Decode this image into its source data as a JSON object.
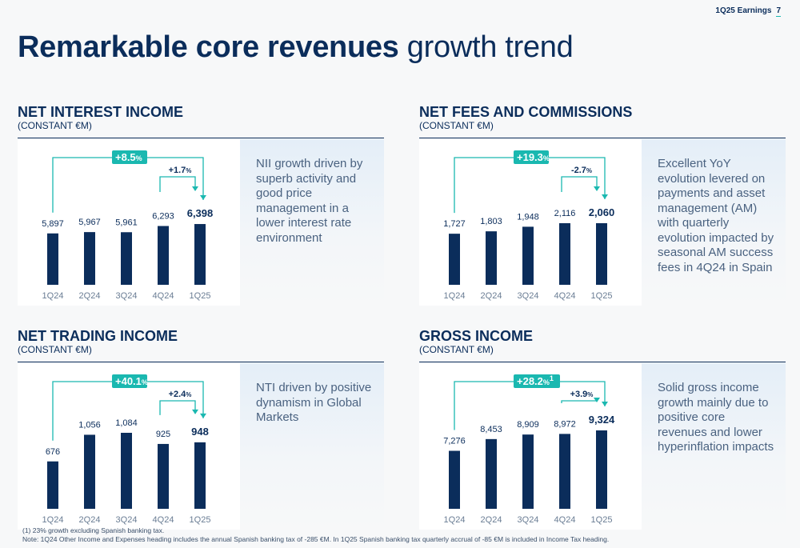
{
  "header": {
    "label": "1Q25 Earnings",
    "page": "7"
  },
  "title": {
    "bold": "Remarkable core revenues",
    "normal": "growth trend"
  },
  "footnotes": [
    "(1) 23% growth excluding Spanish banking tax.",
    "Note: 1Q24 Other Income and Expenses heading includes the annual Spanish banking tax of -285 €M. In 1Q25 Spanish banking tax quarterly accrual of -85 €M is included in Income Tax heading."
  ],
  "colors": {
    "bar": "#0b2d5b",
    "accent": "#1ab8b0",
    "text": "#0b2d5b"
  },
  "panels": [
    {
      "title": "NET INTEREST INCOME",
      "subtitle": "(CONSTANT €M)",
      "description": "NII growth driven by superb activity and good price management in a lower interest rate environment"
    },
    {
      "title": "NET FEES AND COMMISSIONS",
      "subtitle": "(CONSTANT €M)",
      "description": "Excellent YoY evolution levered on payments and asset management (AM) with quarterly evolution impacted by seasonal AM success fees in 4Q24 in Spain"
    },
    {
      "title": "NET TRADING INCOME",
      "subtitle": "(CONSTANT €M)",
      "description": "NTI driven by positive dynamism in Global Markets"
    },
    {
      "title": "GROSS INCOME",
      "subtitle": "(CONSTANT €M)",
      "description": "Solid gross income growth mainly due to positive core revenues and lower hyperinflation impacts"
    }
  ],
  "chart_data": [
    {
      "type": "bar",
      "categories": [
        "1Q24",
        "2Q24",
        "3Q24",
        "4Q24",
        "1Q25"
      ],
      "values": [
        5897,
        5967,
        5961,
        6293,
        6398
      ],
      "value_labels": [
        "5,897",
        "5,967",
        "5,961",
        "6,293",
        "6,398"
      ],
      "yoy": "+8.5",
      "qoq": "+1.7",
      "suffix": ""
    },
    {
      "type": "bar",
      "categories": [
        "1Q24",
        "2Q24",
        "3Q24",
        "4Q24",
        "1Q25"
      ],
      "values": [
        1727,
        1803,
        1948,
        2116,
        2060
      ],
      "value_labels": [
        "1,727",
        "1,803",
        "1,948",
        "2,116",
        "2,060"
      ],
      "yoy": "+19.3",
      "qoq": "-2.7",
      "suffix": ""
    },
    {
      "type": "bar",
      "categories": [
        "1Q24",
        "2Q24",
        "3Q24",
        "4Q24",
        "1Q25"
      ],
      "values": [
        676,
        1056,
        1084,
        925,
        948
      ],
      "value_labels": [
        "676",
        "1,056",
        "1,084",
        "925",
        "948"
      ],
      "yoy": "+40.1",
      "qoq": "+2.4",
      "suffix": ""
    },
    {
      "type": "bar",
      "categories": [
        "1Q24",
        "2Q24",
        "3Q24",
        "4Q24",
        "1Q25"
      ],
      "values": [
        7276,
        8453,
        8909,
        8972,
        9324
      ],
      "value_labels": [
        "7,276",
        "8,453",
        "8,909",
        "8,972",
        "9,324"
      ],
      "yoy": "+28.2",
      "qoq": "+3.9",
      "suffix": "1"
    }
  ]
}
